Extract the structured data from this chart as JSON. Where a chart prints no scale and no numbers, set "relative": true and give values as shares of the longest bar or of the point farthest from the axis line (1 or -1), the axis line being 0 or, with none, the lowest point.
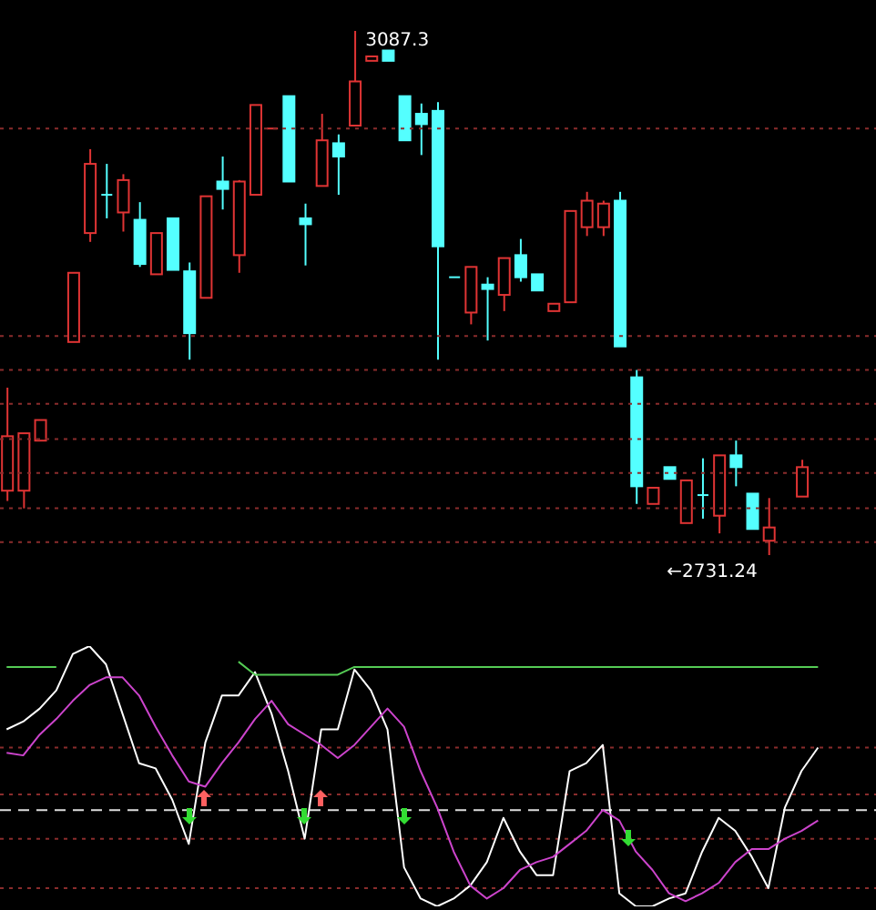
{
  "chart_data": [
    {
      "type": "candlestick",
      "categories": [
        null,
        null,
        null,
        null,
        null,
        null,
        null,
        null,
        null,
        null,
        null,
        null,
        null,
        null,
        null,
        null,
        null,
        null,
        null,
        null,
        null,
        null,
        null,
        null,
        null,
        null,
        null,
        null,
        null,
        null,
        null,
        null,
        null,
        null,
        null,
        null,
        null,
        null,
        null,
        null,
        null,
        null,
        null,
        null,
        null,
        null,
        null,
        null,
        null
      ],
      "ohlc": [
        [
          2775,
          2845,
          2768,
          2812
        ],
        [
          2775,
          2814,
          2763,
          2814
        ],
        [
          2809,
          2823,
          2809,
          2823
        ],
        null,
        [
          2876,
          2923,
          2876,
          2923
        ],
        [
          2950,
          3007,
          2944,
          2997
        ],
        [
          2976,
          2997,
          2960,
          2975
        ],
        [
          2964,
          2990,
          2951,
          2986
        ],
        [
          2959,
          2971,
          2927,
          2929
        ],
        [
          2922,
          2950,
          2922,
          2950
        ],
        [
          2960,
          2960,
          2925,
          2925
        ],
        [
          2924,
          2930,
          2864,
          2882
        ],
        [
          2906,
          2975,
          2906,
          2975
        ],
        [
          2985,
          3002,
          2966,
          2980
        ],
        [
          2935,
          2986,
          2923,
          2985
        ],
        [
          2976,
          3037,
          2976,
          3037
        ],
        [
          3021,
          3021,
          3021,
          3021
        ],
        [
          3043,
          3043,
          2985,
          2985
        ],
        [
          2960,
          2970,
          2928,
          2956
        ],
        [
          2982,
          3031,
          2982,
          3013
        ],
        [
          3011,
          3017,
          2976,
          3002
        ],
        [
          3023,
          3087.3,
          3023,
          3053
        ],
        [
          3067,
          3070,
          3067,
          3070
        ],
        [
          3074,
          3074,
          3067,
          3067
        ],
        [
          3043,
          3043,
          3013,
          3013
        ],
        [
          3031,
          3038,
          3003,
          3024
        ],
        [
          3033,
          3039,
          2864,
          2941
        ],
        [
          2920,
          2920,
          2920,
          2920
        ],
        [
          2896,
          2927,
          2888,
          2927
        ],
        [
          2915,
          2920,
          2877,
          2912
        ],
        [
          2908,
          2933,
          2897,
          2933
        ],
        [
          2935,
          2946,
          2917,
          2920
        ],
        [
          2922,
          2922,
          2911,
          2911
        ],
        [
          2897,
          2902,
          2897,
          2902
        ],
        [
          2903,
          2965,
          2903,
          2965
        ],
        [
          2954,
          2978,
          2948,
          2972
        ],
        [
          2954,
          2972,
          2948,
          2970
        ],
        [
          2972,
          2978,
          2873,
          2873
        ],
        [
          2852,
          2857,
          2766,
          2778
        ],
        [
          2766,
          2777,
          2766,
          2777
        ],
        [
          2791,
          2791,
          2783,
          2783
        ],
        [
          2753,
          2782,
          2753,
          2782
        ],
        [
          2772,
          2797,
          2756,
          2771
        ],
        [
          2758,
          2799,
          2746,
          2799
        ],
        [
          2799,
          2809,
          2778,
          2791
        ],
        [
          2773,
          2773,
          2749,
          2749
        ],
        [
          2741,
          2770,
          2731.24,
          2750
        ],
        null,
        [
          2771,
          2796,
          2771,
          2791
        ]
      ],
      "colors": [
        "#e03434",
        "#e03434",
        "#e03434",
        null,
        "#e03434",
        "#e03434",
        "#54ffff",
        "#e03434",
        "#54ffff",
        "#e03434",
        "#54ffff",
        "#54ffff",
        "#e03434",
        "#54ffff",
        "#e03434",
        "#e03434",
        "#e03434",
        "#54ffff",
        "#54ffff",
        "#e03434",
        "#54ffff",
        "#e03434",
        "#e03434",
        "#54ffff",
        "#54ffff",
        "#54ffff",
        "#54ffff",
        "#54ffff",
        "#e03434",
        "#54ffff",
        "#e03434",
        "#54ffff",
        "#54ffff",
        "#e03434",
        "#e03434",
        "#e03434",
        "#e03434",
        "#54ffff",
        "#54ffff",
        "#e03434",
        "#54ffff",
        "#e03434",
        "#54ffff",
        "#e03434",
        "#54ffff",
        "#54ffff",
        "#e03434",
        null,
        "#e03434"
      ],
      "ref_lines": [
        {
          "axis": "y",
          "value": 3021,
          "color": "#8a2c2c",
          "line_style": "dotted"
        },
        {
          "axis": "y",
          "value": 2880,
          "color": "#8a2c2c",
          "line_style": "dotted"
        },
        {
          "axis": "y",
          "value": 2857,
          "color": "#8a2c2c",
          "line_style": "dotted"
        },
        {
          "axis": "y",
          "value": 2834,
          "color": "#8a2c2c",
          "line_style": "dotted"
        },
        {
          "axis": "y",
          "value": 2810,
          "color": "#8a2c2c",
          "line_style": "dotted"
        },
        {
          "axis": "y",
          "value": 2787,
          "color": "#8a2c2c",
          "line_style": "dotted"
        },
        {
          "axis": "y",
          "value": 2763,
          "color": "#8a2c2c",
          "line_style": "dotted"
        },
        {
          "axis": "y",
          "value": 2740,
          "color": "#8a2c2c",
          "line_style": "dotted"
        }
      ],
      "annotations": [
        "3087.3",
        "←2731.24"
      ]
    },
    {
      "type": "line",
      "relative": true,
      "categories": [
        null,
        null,
        null,
        null,
        null,
        null,
        null,
        null,
        null,
        null,
        null,
        null,
        null,
        null,
        null,
        null,
        null,
        null,
        null,
        null,
        null,
        null,
        null,
        null,
        null,
        null,
        null,
        null,
        null,
        null,
        null,
        null,
        null,
        null,
        null,
        null,
        null,
        null,
        null,
        null,
        null,
        null,
        null,
        null,
        null,
        null,
        null,
        null,
        null,
        null
      ],
      "series": [
        {
          "color": "#ffffff",
          "values": [
            0.68,
            0.71,
            0.76,
            0.83,
            0.97,
            1,
            0.93,
            0.74,
            0.55,
            0.53,
            0.41,
            0.24,
            0.63,
            0.81,
            0.81,
            0.9,
            0.74,
            0.52,
            0.26,
            0.68,
            0.68,
            0.91,
            0.83,
            0.68,
            0.15,
            0.03,
            0,
            0.03,
            0.08,
            0.17,
            0.34,
            0.21,
            0.12,
            0.12,
            0.52,
            0.55,
            0.62,
            0.05,
            0,
            0,
            0.03,
            0.05,
            0.21,
            0.34,
            0.29,
            0.19,
            0.07,
            0.38,
            0.52,
            0.61
          ]
        },
        {
          "color": "#cc44cc",
          "values": [
            0.59,
            0.58,
            0.66,
            0.72,
            0.79,
            0.85,
            0.88,
            0.88,
            0.81,
            0.69,
            0.58,
            0.48,
            0.46,
            0.55,
            0.63,
            0.72,
            0.79,
            0.7,
            0.66,
            0.62,
            0.57,
            0.62,
            0.69,
            0.76,
            0.69,
            0.52,
            0.38,
            0.21,
            0.08,
            0.03,
            0.07,
            0.14,
            0.17,
            0.19,
            0.24,
            0.29,
            0.37,
            0.33,
            0.21,
            0.14,
            0.05,
            0.02,
            0.05,
            0.09,
            0.17,
            0.22,
            0.22,
            0.26,
            0.29,
            0.33
          ]
        },
        {
          "color": "#55cc55",
          "values": [
            0.92,
            0.92,
            0.92,
            0.92,
            null,
            null,
            null,
            null,
            null,
            null,
            null,
            null,
            null,
            null,
            0.94,
            0.89,
            0.89,
            0.89,
            0.89,
            0.89,
            0.89,
            0.92,
            0.92,
            0.92,
            0.92,
            0.92,
            0.92,
            0.92,
            0.92,
            0.92,
            0.92,
            0.92,
            0.92,
            0.92,
            0.92,
            0.92,
            0.92,
            0.92,
            0.92,
            0.92,
            0.92,
            0.92,
            0.92,
            0.92,
            0.92,
            0.92,
            0.92,
            0.92,
            0.92,
            0.92
          ]
        }
      ],
      "ref_lines": [
        {
          "axis": "y",
          "value": 0.61,
          "color": "#8a2c2c",
          "line_style": "dotted"
        },
        {
          "axis": "y",
          "value": 0.43,
          "color": "#8a2c2c",
          "line_style": "dotted"
        },
        {
          "axis": "y",
          "value": 0.26,
          "color": "#8a2c2c",
          "line_style": "dotted"
        },
        {
          "axis": "y",
          "value": 0.07,
          "color": "#8a2c2c",
          "line_style": "dotted"
        },
        {
          "axis": "y",
          "value": 0.37,
          "color": "#dddddd",
          "line_style": "dashed"
        }
      ]
    }
  ]
}
